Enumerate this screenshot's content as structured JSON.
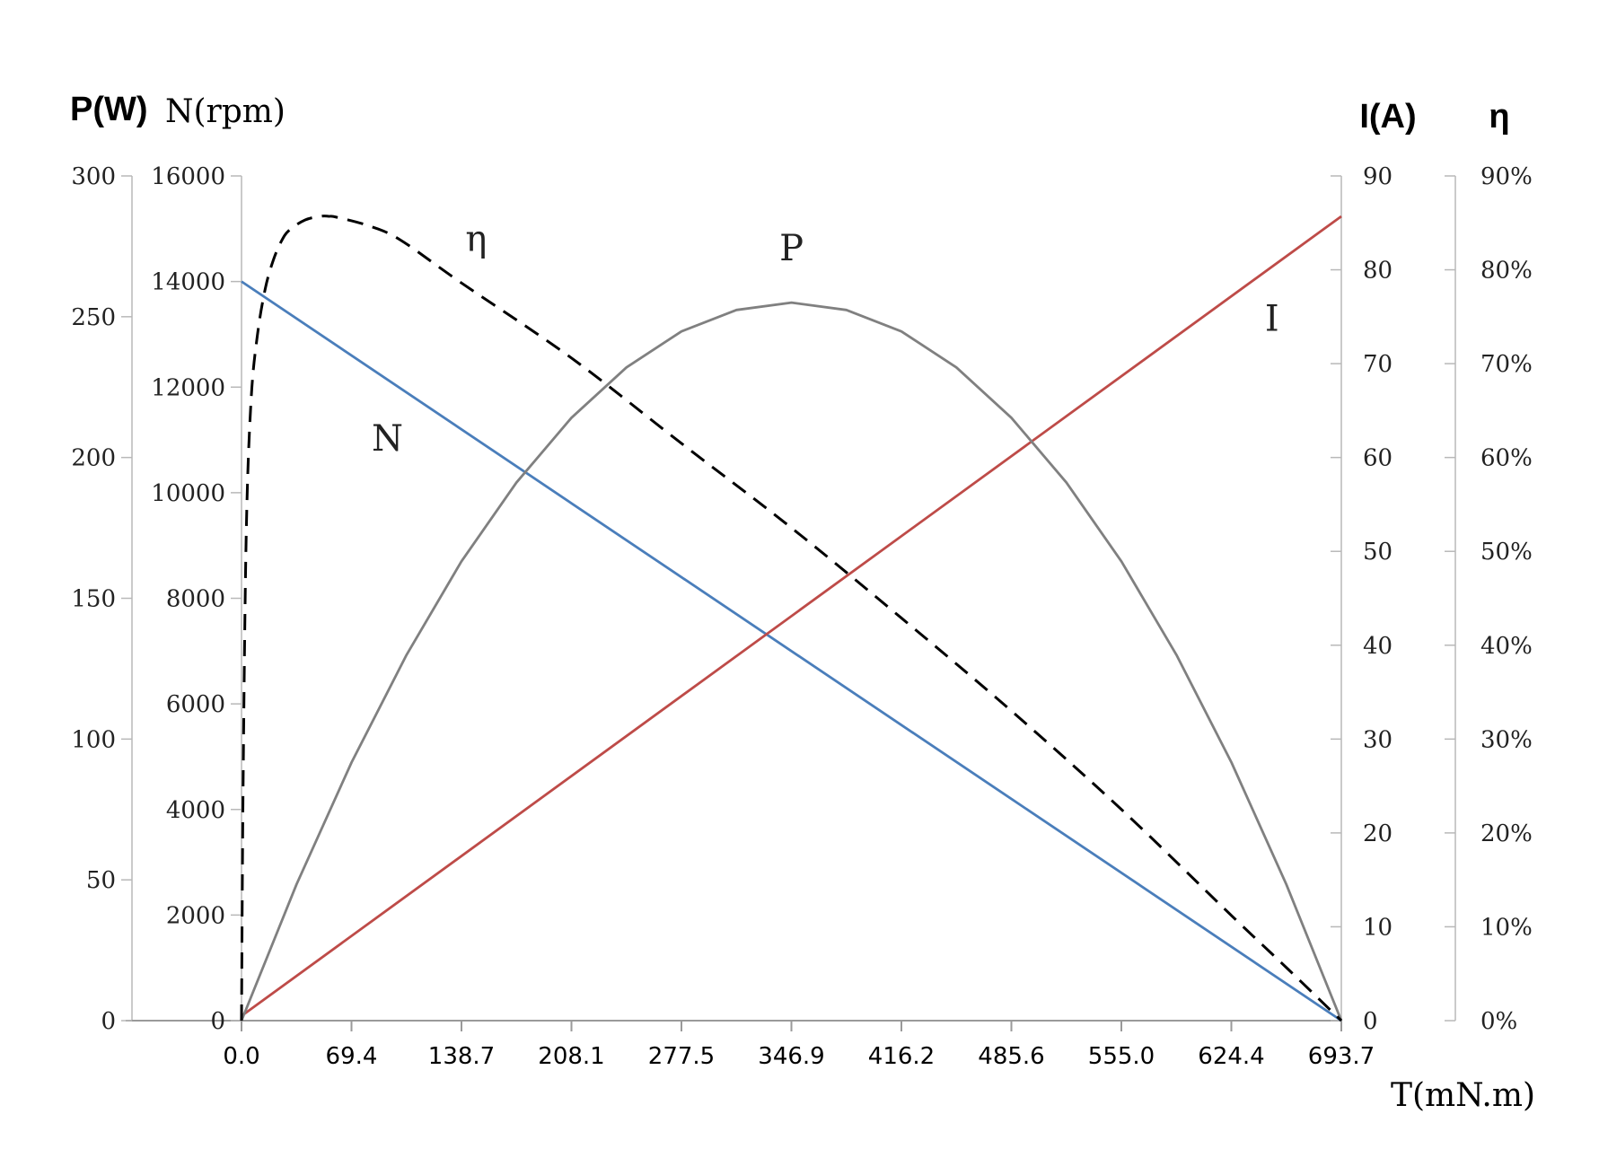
{
  "chart_data": {
    "type": "line",
    "xlabel": "T(mN.m)",
    "x_ticks": [
      "0.0",
      "69.4",
      "138.7",
      "208.1",
      "277.5",
      "346.9",
      "416.2",
      "485.6",
      "555.0",
      "624.4",
      "693.7"
    ],
    "xlim": [
      0,
      693.7
    ],
    "axes": {
      "P": {
        "label": "P(W)",
        "side": "left-outer",
        "range": [
          0,
          300
        ],
        "ticks": [
          "0",
          "50",
          "100",
          "150",
          "200",
          "250",
          "300"
        ]
      },
      "N": {
        "label": "N(rpm)",
        "side": "left-inner",
        "range": [
          0,
          16000
        ],
        "ticks": [
          "0",
          "2000",
          "4000",
          "6000",
          "8000",
          "10000",
          "12000",
          "14000",
          "16000"
        ]
      },
      "I": {
        "label": "I(A)",
        "side": "right-inner",
        "range": [
          0,
          90
        ],
        "ticks": [
          "0",
          "10",
          "20",
          "30",
          "40",
          "50",
          "60",
          "70",
          "80",
          "90"
        ]
      },
      "eta": {
        "label": "η",
        "side": "right-outer",
        "range": [
          0,
          90
        ],
        "ticks": [
          "0%",
          "10%",
          "20%",
          "30%",
          "40%",
          "50%",
          "60%",
          "70%",
          "80%",
          "90%"
        ]
      }
    },
    "series": [
      {
        "name": "N",
        "axis": "N",
        "color": "#4a7ebb",
        "style": "solid",
        "x": [
          0,
          693.7
        ],
        "values": [
          14000,
          0
        ]
      },
      {
        "name": "I",
        "axis": "I",
        "color": "#be4b48",
        "style": "solid",
        "x": [
          0,
          693.7
        ],
        "values": [
          0.5,
          85.7
        ]
      },
      {
        "name": "P",
        "axis": "P",
        "color": "#808080",
        "style": "solid",
        "x": [
          0,
          34.7,
          69.4,
          104.1,
          138.7,
          173.4,
          208.1,
          242.8,
          277.5,
          312.2,
          346.9,
          381.5,
          416.2,
          450.9,
          485.6,
          520.3,
          555.0,
          589.7,
          624.4,
          659.0,
          693.7
        ],
        "values": [
          0,
          48.4,
          91.7,
          129.9,
          163.1,
          191.1,
          214.1,
          232.0,
          244.8,
          252.4,
          255.0,
          252.4,
          244.8,
          232.0,
          214.1,
          191.1,
          163.1,
          129.9,
          91.7,
          48.4,
          0
        ]
      },
      {
        "name": "η",
        "axis": "eta",
        "color": "#000000",
        "style": "dashed",
        "x": [
          0,
          1,
          3,
          6,
          10,
          15,
          20,
          25,
          30,
          40,
          50,
          55,
          60,
          80,
          100,
          138.7,
          208.1,
          277.5,
          346.9,
          416.2,
          485.6,
          555.0,
          624.4,
          660,
          693.7
        ],
        "values": [
          0,
          25,
          52,
          66,
          73,
          78,
          81,
          83,
          84.2,
          85.3,
          85.7,
          85.7,
          85.6,
          84.7,
          83.2,
          78.6,
          70.6,
          61.5,
          52.5,
          42.9,
          33.0,
          22.5,
          11.2,
          5.5,
          0
        ]
      }
    ],
    "curve_labels": [
      {
        "text": "η",
        "series": "η",
        "x": 148,
        "y": 82
      },
      {
        "text": "P",
        "series": "P",
        "x": 346.9,
        "y": 270
      },
      {
        "text": "N",
        "series": "N",
        "x": 92,
        "y": 10800
      },
      {
        "text": "I",
        "series": "I",
        "x": 650,
        "y": 73.5
      }
    ]
  }
}
